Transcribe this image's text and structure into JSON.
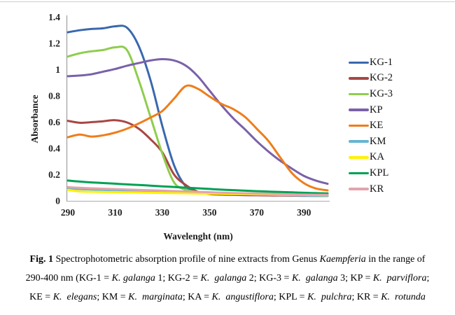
{
  "figure": {
    "caption": {
      "lines": [
        [
          {
            "t": "Fig. 1 ",
            "s": "b"
          },
          {
            "t": "Spectrophotometric absorption profile of nine extracts from Genus ",
            "s": ""
          },
          {
            "t": "Kaempferia",
            "s": "i"
          },
          {
            "t": " in the range of",
            "s": ""
          }
        ],
        [
          {
            "t": "290-400 nm (KG-1 = ",
            "s": ""
          },
          {
            "t": "K. galanga",
            "s": "i"
          },
          {
            "t": " 1; KG-2 = ",
            "s": ""
          },
          {
            "t": "K.  galanga",
            "s": "i"
          },
          {
            "t": " 2; KG-3 = ",
            "s": ""
          },
          {
            "t": "K.  galanga",
            "s": "i"
          },
          {
            "t": " 3; KP = ",
            "s": ""
          },
          {
            "t": "K.  parviflora",
            "s": "i"
          },
          {
            "t": ";",
            "s": ""
          }
        ],
        [
          {
            "t": "KE = ",
            "s": ""
          },
          {
            "t": "K.  elegans",
            "s": "i"
          },
          {
            "t": "; KM = ",
            "s": ""
          },
          {
            "t": "K.  marginata",
            "s": "i"
          },
          {
            "t": "; KA = ",
            "s": ""
          },
          {
            "t": "K.  angustiflora",
            "s": "i"
          },
          {
            "t": "; KPL = ",
            "s": ""
          },
          {
            "t": "K.  pulchra",
            "s": "i"
          },
          {
            "t": "; KR = ",
            "s": ""
          },
          {
            "t": "K.  rotunda",
            "s": "i"
          }
        ]
      ]
    }
  },
  "chart_data": {
    "type": "line",
    "title": "",
    "xlabel": "Wavelenght (nm)",
    "ylabel": "Absorbance",
    "xlim": [
      290,
      400
    ],
    "ylim": [
      0,
      1.4
    ],
    "grid": false,
    "legend_position": "right",
    "x_ticks": [
      290,
      310,
      330,
      350,
      370,
      390
    ],
    "y_ticks": [
      {
        "v": 0,
        "label": "0"
      },
      {
        "v": 0.2,
        "label": "0.2"
      },
      {
        "v": 0.4,
        "label": "0.4"
      },
      {
        "v": 0.6,
        "label": "0.6"
      },
      {
        "v": 0.8,
        "label": "0.8"
      },
      {
        "v": 1,
        "label": "1"
      },
      {
        "v": 1.2,
        "label": "1.2"
      },
      {
        "v": 1.4,
        "label": "1.4"
      }
    ],
    "x": [
      290,
      295,
      300,
      305,
      310,
      315,
      320,
      325,
      330,
      335,
      340,
      345,
      350,
      355,
      360,
      365,
      370,
      375,
      380,
      385,
      390,
      395,
      400
    ],
    "series": [
      {
        "name": "KG-1",
        "color": "#3968AE",
        "values": [
          1.285,
          1.3,
          1.31,
          1.315,
          1.33,
          1.32,
          1.18,
          0.92,
          0.57,
          0.27,
          0.11,
          0.065,
          0.055,
          0.052,
          0.05,
          0.049,
          0.048,
          0.047,
          0.046,
          0.044,
          0.043,
          0.042,
          0.04
        ]
      },
      {
        "name": "KG-2",
        "color": "#A84743",
        "values": [
          0.61,
          0.595,
          0.6,
          0.607,
          0.615,
          0.598,
          0.55,
          0.47,
          0.37,
          0.2,
          0.12,
          0.07,
          0.052,
          0.048,
          0.046,
          0.044,
          0.043,
          0.042,
          0.041,
          0.04,
          0.039,
          0.038,
          0.038
        ]
      },
      {
        "name": "KG-3",
        "color": "#8FCD4E",
        "values": [
          1.1,
          1.125,
          1.14,
          1.15,
          1.17,
          1.15,
          0.92,
          0.64,
          0.36,
          0.14,
          0.085,
          0.068,
          0.062,
          0.06,
          0.058,
          0.057,
          0.056,
          0.055,
          0.054,
          0.053,
          0.052,
          0.051,
          0.05
        ]
      },
      {
        "name": "KP",
        "color": "#7A61A8",
        "values": [
          0.95,
          0.955,
          0.965,
          0.985,
          1.005,
          1.03,
          1.05,
          1.07,
          1.08,
          1.07,
          1.03,
          0.95,
          0.84,
          0.73,
          0.63,
          0.545,
          0.455,
          0.375,
          0.305,
          0.245,
          0.19,
          0.155,
          0.13
        ]
      },
      {
        "name": "KE",
        "color": "#EF7D1A",
        "values": [
          0.485,
          0.505,
          0.49,
          0.5,
          0.52,
          0.55,
          0.59,
          0.635,
          0.685,
          0.78,
          0.875,
          0.855,
          0.795,
          0.74,
          0.7,
          0.64,
          0.55,
          0.455,
          0.33,
          0.21,
          0.135,
          0.095,
          0.08
        ]
      },
      {
        "name": "KM",
        "color": "#66B5D2",
        "values": [
          0.095,
          0.09,
          0.087,
          0.084,
          0.081,
          0.079,
          0.076,
          0.074,
          0.071,
          0.068,
          0.065,
          0.062,
          0.059,
          0.056,
          0.053,
          0.051,
          0.049,
          0.047,
          0.045,
          0.043,
          0.041,
          0.039,
          0.038
        ]
      },
      {
        "name": "KA",
        "color": "#FFF101",
        "values": [
          0.085,
          0.072,
          0.07,
          0.068,
          0.067,
          0.065,
          0.064,
          0.062,
          0.061,
          0.059,
          0.058,
          0.056,
          0.055,
          0.054,
          0.052,
          0.051,
          0.05,
          0.049,
          0.048,
          0.047,
          0.046,
          0.045,
          0.044
        ]
      },
      {
        "name": "KPL",
        "color": "#00A155",
        "values": [
          0.155,
          0.147,
          0.141,
          0.136,
          0.131,
          0.126,
          0.121,
          0.116,
          0.111,
          0.106,
          0.101,
          0.096,
          0.091,
          0.086,
          0.082,
          0.078,
          0.074,
          0.071,
          0.068,
          0.065,
          0.062,
          0.059,
          0.057
        ]
      },
      {
        "name": "KR",
        "color": "#E3A4AB",
        "values": [
          0.105,
          0.1,
          0.096,
          0.093,
          0.09,
          0.087,
          0.084,
          0.081,
          0.078,
          0.075,
          0.072,
          0.069,
          0.066,
          0.063,
          0.06,
          0.058,
          0.056,
          0.054,
          0.052,
          0.05,
          0.048,
          0.047,
          0.046
        ]
      }
    ]
  }
}
